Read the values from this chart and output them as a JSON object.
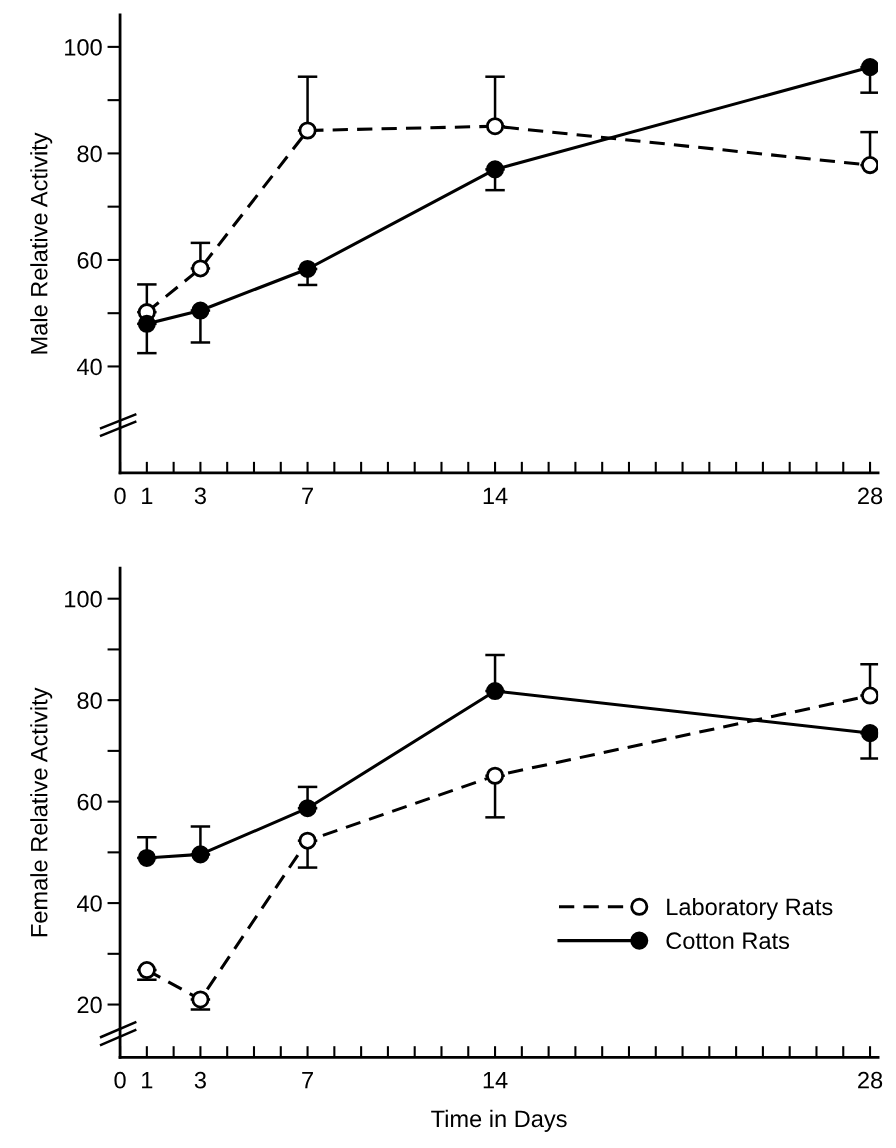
{
  "chart_data": [
    {
      "type": "line",
      "ylabel": "Male Relative Activity",
      "x": [
        1,
        3,
        7,
        14,
        28
      ],
      "xlim": [
        0,
        28.3
      ],
      "ylim": [
        20,
        106
      ],
      "xticks": [
        0,
        1,
        {
          "value": 2,
          "label": null
        },
        3,
        {
          "value": 4,
          "label": null
        },
        {
          "value": 5,
          "label": null
        },
        {
          "value": 6,
          "label": null
        },
        7,
        {
          "value": 8,
          "label": null
        },
        {
          "value": 9,
          "label": null
        },
        {
          "value": 10,
          "label": null
        },
        {
          "value": 11,
          "label": null
        },
        {
          "value": 12,
          "label": null
        },
        {
          "value": 13,
          "label": null
        },
        14,
        {
          "value": 15,
          "label": null
        },
        {
          "value": 16,
          "label": null
        },
        {
          "value": 17,
          "label": null
        },
        {
          "value": 18,
          "label": null
        },
        {
          "value": 19,
          "label": null
        },
        {
          "value": 20,
          "label": null
        },
        {
          "value": 21,
          "label": null
        },
        {
          "value": 22,
          "label": null
        },
        {
          "value": 23,
          "label": null
        },
        {
          "value": 24,
          "label": null
        },
        {
          "value": 25,
          "label": null
        },
        {
          "value": 26,
          "label": null
        },
        {
          "value": 27,
          "label": null
        },
        28
      ],
      "yticks": [
        40,
        {
          "value": 50,
          "label": null
        },
        60,
        {
          "value": 70,
          "label": null
        },
        80,
        {
          "value": 90,
          "label": null
        },
        100
      ],
      "grid": false,
      "legend": false,
      "marker": "circle",
      "series": [
        {
          "color": "#000000",
          "line_style": "dashed",
          "values": [
            50.2,
            58.4,
            84.3,
            85.1,
            77.8
          ],
          "errors": [
            [
              50.2,
              55.4
            ],
            [
              58.4,
              63.2
            ],
            [
              84.3,
              94.4
            ],
            [
              85.1,
              94.4
            ],
            [
              77.8,
              84.0
            ]
          ]
        },
        {
          "color": "#000000",
          "line_style": "solid",
          "values": [
            48.0,
            50.5,
            58.3,
            77.0,
            96.2
          ],
          "errors": [
            [
              42.5,
              48.0
            ],
            [
              44.5,
              50.5
            ],
            [
              55.3,
              58.3
            ],
            [
              73.1,
              77.0
            ],
            [
              91.4,
              96.2
            ]
          ]
        }
      ]
    },
    {
      "type": "line",
      "ylabel": "Female Relative Activity",
      "xlabel": "Time in Days",
      "x": [
        1,
        3,
        7,
        14,
        28
      ],
      "xlim": [
        0,
        28.3
      ],
      "ylim": [
        9.6,
        106
      ],
      "xticks": [
        0,
        1,
        {
          "value": 2,
          "label": null
        },
        3,
        {
          "value": 4,
          "label": null
        },
        {
          "value": 5,
          "label": null
        },
        {
          "value": 6,
          "label": null
        },
        7,
        {
          "value": 8,
          "label": null
        },
        {
          "value": 9,
          "label": null
        },
        {
          "value": 10,
          "label": null
        },
        {
          "value": 11,
          "label": null
        },
        {
          "value": 12,
          "label": null
        },
        {
          "value": 13,
          "label": null
        },
        14,
        {
          "value": 15,
          "label": null
        },
        {
          "value": 16,
          "label": null
        },
        {
          "value": 17,
          "label": null
        },
        {
          "value": 18,
          "label": null
        },
        {
          "value": 19,
          "label": null
        },
        {
          "value": 20,
          "label": null
        },
        {
          "value": 21,
          "label": null
        },
        {
          "value": 22,
          "label": null
        },
        {
          "value": 23,
          "label": null
        },
        {
          "value": 24,
          "label": null
        },
        {
          "value": 25,
          "label": null
        },
        {
          "value": 26,
          "label": null
        },
        {
          "value": 27,
          "label": null
        },
        28
      ],
      "yticks": [
        20,
        {
          "value": 30,
          "label": null
        },
        40,
        {
          "value": 50,
          "label": null
        },
        60,
        {
          "value": 70,
          "label": null
        },
        80,
        {
          "value": 90,
          "label": null
        },
        100
      ],
      "grid": false,
      "legend": "lower right",
      "marker": "circle",
      "series": [
        {
          "name": "Laboratory Rats",
          "color": "#000000",
          "line_style": "dashed",
          "values": [
            26.8,
            21.0,
            52.3,
            65.1,
            80.9
          ],
          "errors": [
            [
              24.9,
              26.8
            ],
            [
              19.0,
              21.0
            ],
            [
              47.0,
              52.3
            ],
            [
              56.9,
              65.1
            ],
            [
              80.9,
              87.1
            ]
          ]
        },
        {
          "name": "Cotton Rats",
          "color": "#000000",
          "line_style": "solid",
          "values": [
            48.9,
            49.6,
            58.7,
            81.8,
            73.5
          ],
          "errors": [
            [
              48.9,
              53.0
            ],
            [
              49.6,
              55.1
            ],
            [
              58.7,
              62.9
            ],
            [
              81.8,
              88.9
            ],
            [
              68.5,
              73.5
            ]
          ]
        }
      ]
    }
  ]
}
